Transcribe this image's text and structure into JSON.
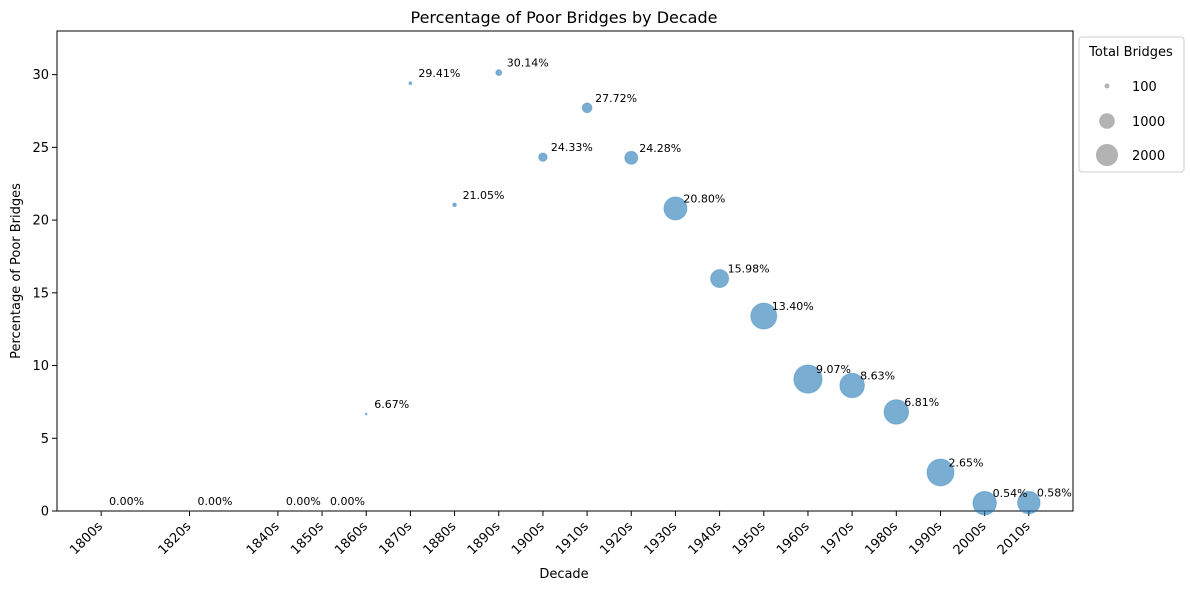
{
  "chart_data": {
    "type": "scatter",
    "title": "Percentage of Poor Bridges by Decade",
    "xlabel": "Decade",
    "ylabel": "Percentage of Poor Bridges",
    "ylim": [
      0,
      33
    ],
    "yticks": [
      0,
      5,
      10,
      15,
      20,
      25,
      30
    ],
    "x_year_range": [
      1790,
      2020
    ],
    "categories": [
      "1800s",
      "1820s",
      "1840s",
      "1850s",
      "1860s",
      "1870s",
      "1880s",
      "1890s",
      "1900s",
      "1910s",
      "1920s",
      "1930s",
      "1940s",
      "1950s",
      "1960s",
      "1970s",
      "1980s",
      "1990s",
      "2000s",
      "2010s"
    ],
    "x_years": [
      1800,
      1820,
      1840,
      1850,
      1860,
      1870,
      1880,
      1890,
      1900,
      1910,
      1920,
      1930,
      1940,
      1950,
      1960,
      1970,
      1980,
      1990,
      2000,
      2010
    ],
    "values": [
      0,
      0,
      0,
      0,
      6.67,
      29.41,
      21.05,
      30.14,
      24.33,
      27.72,
      24.28,
      20.8,
      15.98,
      13.4,
      9.07,
      8.63,
      6.81,
      2.65,
      0.54,
      0.58
    ],
    "total_bridges": [
      2,
      3,
      2,
      4,
      15,
      34,
      57,
      146,
      300,
      404,
      700,
      2200,
      1350,
      2800,
      3300,
      2500,
      2500,
      3000,
      2300,
      2100
    ],
    "labels": [
      "0.00%",
      "0.00%",
      "0.00%",
      "0.00%",
      "6.67%",
      "29.41%",
      "21.05%",
      "30.14%",
      "24.33%",
      "27.72%",
      "24.28%",
      "20.80%",
      "15.98%",
      "13.40%",
      "9.07%",
      "8.63%",
      "6.81%",
      "2.65%",
      "0.54%",
      "0.58%"
    ],
    "marker_color": "#1f77b4",
    "marker_alpha": 0.6,
    "legend": {
      "title": "Total Bridges",
      "position": "upper-right-outside",
      "entries": [
        {
          "label": "100",
          "value": 100
        },
        {
          "label": "1000",
          "value": 1000
        },
        {
          "label": "2000",
          "value": 2000
        }
      ],
      "color": "#808080"
    },
    "grid": false
  }
}
